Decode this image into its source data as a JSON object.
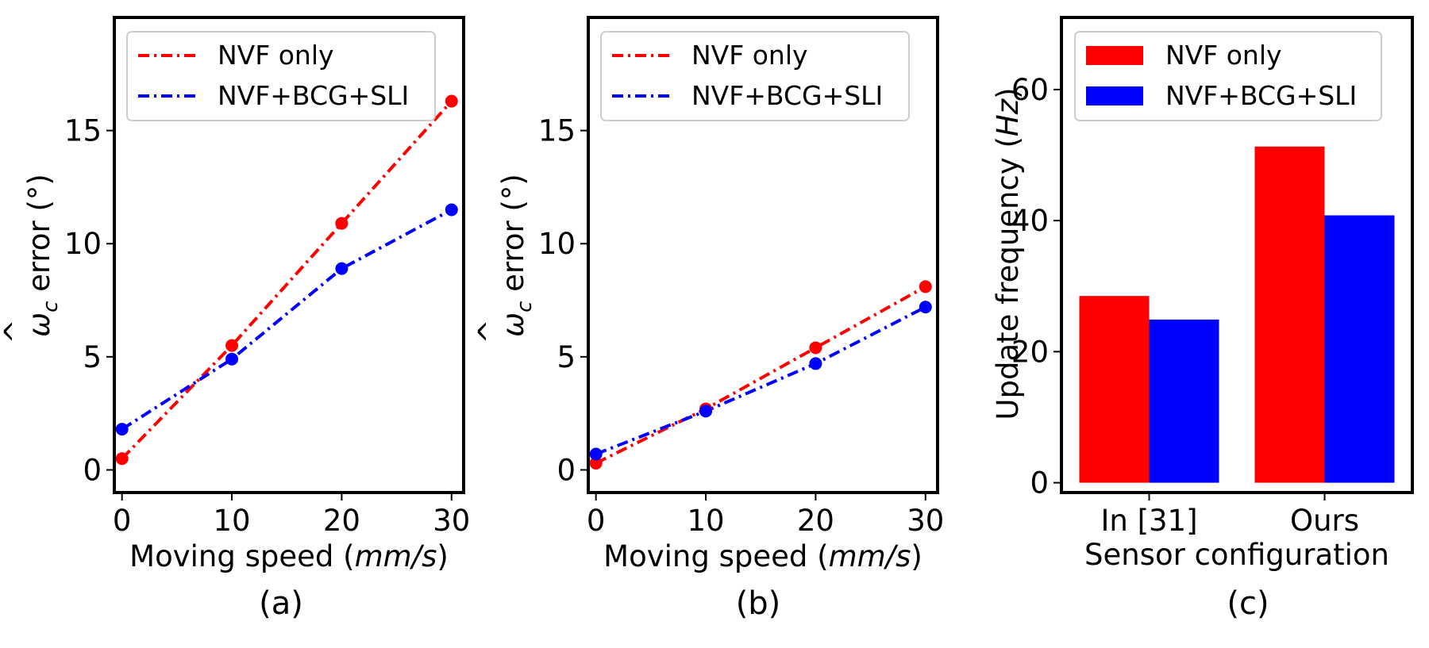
{
  "chart_data": [
    {
      "type": "line",
      "caption": "(a)",
      "xlabel_prefix": "Moving speed (",
      "xlabel_unit": "mm/s",
      "xlabel_suffix": ")",
      "ylabel_symbol": "ω",
      "ylabel_hat": "^",
      "ylabel_sub": "c",
      "ylabel_text": " error (°)",
      "x": [
        0,
        10,
        20,
        30
      ],
      "xticks": [
        "0",
        "10",
        "20",
        "30"
      ],
      "yticks": [
        "0",
        "5",
        "10",
        "15"
      ],
      "xlim": [
        -0.7,
        31.1
      ],
      "ylim": [
        -1.0,
        20.0
      ],
      "series": [
        {
          "name": "NVF only",
          "color": "#ff0000",
          "values": [
            0.5,
            5.5,
            10.9,
            16.3
          ]
        },
        {
          "name": "NVF+BCG+SLI",
          "color": "#0000ff",
          "values": [
            1.8,
            4.9,
            8.9,
            11.5
          ]
        }
      ]
    },
    {
      "type": "line",
      "caption": "(b)",
      "xlabel_prefix": "Moving speed (",
      "xlabel_unit": "mm/s",
      "xlabel_suffix": ")",
      "ylabel_symbol": "ω",
      "ylabel_hat": "^",
      "ylabel_sub": "c",
      "ylabel_text": " error (°)",
      "x": [
        0,
        10,
        20,
        30
      ],
      "xticks": [
        "0",
        "10",
        "20",
        "30"
      ],
      "yticks": [
        "0",
        "5",
        "10",
        "15"
      ],
      "xlim": [
        -0.7,
        31.1
      ],
      "ylim": [
        -1.0,
        20.0
      ],
      "series": [
        {
          "name": "NVF only",
          "color": "#ff0000",
          "values": [
            0.3,
            2.7,
            5.4,
            8.1
          ]
        },
        {
          "name": "NVF+BCG+SLI",
          "color": "#0000ff",
          "values": [
            0.7,
            2.6,
            4.7,
            7.2
          ]
        }
      ]
    },
    {
      "type": "bar",
      "caption": "(c)",
      "xlabel": "Sensor configuration",
      "ylabel_prefix": "Update frequency (",
      "ylabel_unit": "Hz",
      "ylabel_suffix": ")",
      "categories": [
        "In [31]",
        "Ours"
      ],
      "yticks": [
        "0",
        "20",
        "40",
        "60"
      ],
      "ylim": [
        -1.5,
        71.0
      ],
      "series": [
        {
          "name": "NVF only",
          "color": "#ff0000",
          "values": [
            28.5,
            51.3
          ]
        },
        {
          "name": "NVF+BCG+SLI",
          "color": "#0000ff",
          "values": [
            24.9,
            40.8
          ]
        }
      ]
    }
  ]
}
